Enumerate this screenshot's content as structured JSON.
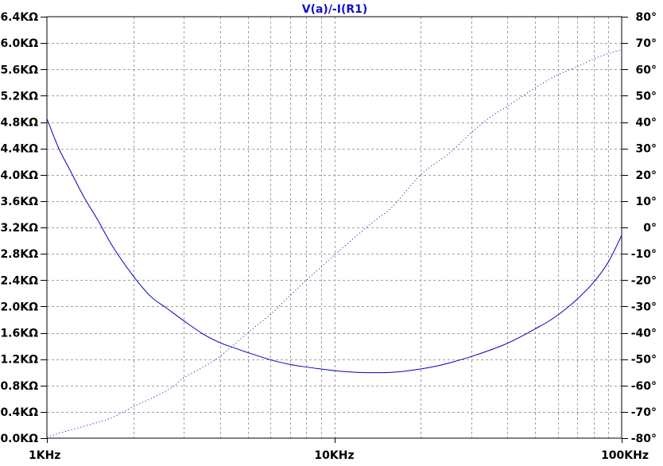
{
  "colors": {
    "background": "#ffffff",
    "grid": "#a0a0a0",
    "frame": "#000000",
    "trace": "#0000c0",
    "title": "#1010c8"
  },
  "chart_data": {
    "type": "line",
    "title": "V(a)/-I(R1)",
    "x_scale": "log",
    "xlim": [
      1000,
      100000
    ],
    "x_ticks": [
      {
        "value": 1000,
        "label": "1KHz"
      },
      {
        "value": 10000,
        "label": "10KHz"
      },
      {
        "value": 100000,
        "label": "100KHz"
      }
    ],
    "ylim_left": [
      0,
      6400
    ],
    "y_ticks_left": [
      {
        "value": 0,
        "label": "0.0KΩ"
      },
      {
        "value": 400,
        "label": "0.4KΩ"
      },
      {
        "value": 800,
        "label": "0.8KΩ"
      },
      {
        "value": 1200,
        "label": "1.2KΩ"
      },
      {
        "value": 1600,
        "label": "1.6KΩ"
      },
      {
        "value": 2000,
        "label": "2.0KΩ"
      },
      {
        "value": 2400,
        "label": "2.4KΩ"
      },
      {
        "value": 2800,
        "label": "2.8KΩ"
      },
      {
        "value": 3200,
        "label": "3.2KΩ"
      },
      {
        "value": 3600,
        "label": "3.6KΩ"
      },
      {
        "value": 4000,
        "label": "4.0KΩ"
      },
      {
        "value": 4400,
        "label": "4.4KΩ"
      },
      {
        "value": 4800,
        "label": "4.8KΩ"
      },
      {
        "value": 5200,
        "label": "5.2KΩ"
      },
      {
        "value": 5600,
        "label": "5.6KΩ"
      },
      {
        "value": 6000,
        "label": "6.0KΩ"
      },
      {
        "value": 6400,
        "label": "6.4KΩ"
      }
    ],
    "ylim_right": [
      -80,
      80
    ],
    "y_ticks_right": [
      {
        "value": 80,
        "label": "80°"
      },
      {
        "value": 70,
        "label": "70°"
      },
      {
        "value": 60,
        "label": "60°"
      },
      {
        "value": 50,
        "label": "50°"
      },
      {
        "value": 40,
        "label": "40°"
      },
      {
        "value": 30,
        "label": "30°"
      },
      {
        "value": 20,
        "label": "20°"
      },
      {
        "value": 10,
        "label": "10°"
      },
      {
        "value": 0,
        "label": "0°"
      },
      {
        "value": -10,
        "label": "-10°"
      },
      {
        "value": -20,
        "label": "-20°"
      },
      {
        "value": -30,
        "label": "-30°"
      },
      {
        "value": -40,
        "label": "-40°"
      },
      {
        "value": -50,
        "label": "-50°"
      },
      {
        "value": -60,
        "label": "-60°"
      },
      {
        "value": -70,
        "label": "-70°"
      },
      {
        "value": -80,
        "label": "-80°"
      }
    ],
    "grid": true,
    "series": [
      {
        "quantity": "magnitude",
        "axis": "left",
        "style": "solid",
        "x": [
          1000,
          1100,
          1200,
          1350,
          1500,
          1700,
          2000,
          2300,
          2600,
          3000,
          3500,
          4000,
          4500,
          5000,
          6000,
          7000,
          8000,
          9000,
          10000,
          11000,
          12000,
          13000,
          14000,
          15000,
          17000,
          20000,
          23000,
          26000,
          30000,
          35000,
          40000,
          45000,
          50000,
          55000,
          60000,
          65000,
          70000,
          80000,
          90000,
          100000
        ],
        "y": [
          4850,
          4400,
          4080,
          3650,
          3320,
          2900,
          2460,
          2150,
          1980,
          1780,
          1580,
          1450,
          1370,
          1300,
          1190,
          1120,
          1080,
          1050,
          1025,
          1010,
          1000,
          995,
          995,
          995,
          1010,
          1050,
          1100,
          1160,
          1240,
          1340,
          1440,
          1550,
          1660,
          1760,
          1870,
          1990,
          2110,
          2370,
          2680,
          3080
        ]
      },
      {
        "quantity": "phase",
        "axis": "right",
        "style": "dotted",
        "x": [
          1000,
          1200,
          1500,
          1700,
          2000,
          2300,
          2700,
          3000,
          3500,
          4000,
          5000,
          6000,
          7000,
          8000,
          9000,
          10000,
          12000,
          14000,
          16000,
          20000,
          25000,
          30000,
          35000,
          40000,
          50000,
          60000,
          70000,
          80000,
          90000,
          100000
        ],
        "y": [
          -79.5,
          -77,
          -74,
          -72,
          -68,
          -65,
          -61,
          -57,
          -53,
          -49,
          -40,
          -33,
          -26,
          -20,
          -15,
          -10.5,
          -3,
          3,
          8,
          20,
          28,
          36,
          42,
          46,
          53,
          58,
          61,
          64,
          66,
          67.5
        ]
      }
    ]
  }
}
